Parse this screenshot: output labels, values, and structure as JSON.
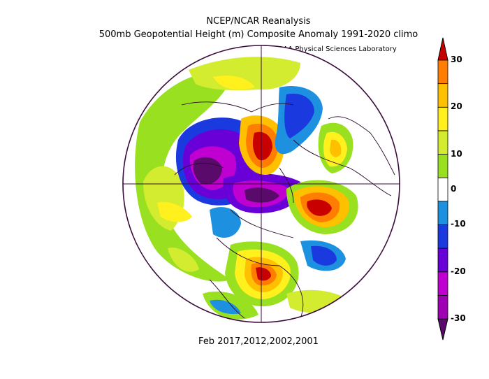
{
  "title": {
    "line1": "NCEP/NCAR Reanalysis",
    "line2": "500mb Geopotential Height (m) Composite Anomaly 1991-2020 climo"
  },
  "credit": "NOAA Physical Sciences Laboratory",
  "footer": "Feb 2017,2012,2002,2001",
  "map": {
    "projection": "north-polar-stereographic",
    "border_color": "#3a0a3a",
    "land_outline_color": "#2b0a2b"
  },
  "colorbar": {
    "labels": [
      "30",
      "20",
      "10",
      "0",
      "-10",
      "-20",
      "-30"
    ],
    "values": [
      30,
      20,
      10,
      0,
      -10,
      -20,
      -30
    ],
    "extends": "both",
    "bins": [
      {
        "range": "< -30",
        "color": "#5a0a6a"
      },
      {
        "range": "-30 to -25",
        "color": "#a000b4"
      },
      {
        "range": "-25 to -20",
        "color": "#c000d0"
      },
      {
        "range": "-20 to -15",
        "color": "#6a00d8"
      },
      {
        "range": "-15 to -10",
        "color": "#1a3ae0"
      },
      {
        "range": "-10 to -5",
        "color": "#1e90e0"
      },
      {
        "range": "-5 to 5",
        "color": "#ffffff"
      },
      {
        "range": "5 to 10",
        "color": "#98e020"
      },
      {
        "range": "10 to 15",
        "color": "#d4ec30"
      },
      {
        "range": "15 to 20",
        "color": "#fff01e"
      },
      {
        "range": "20 to 25",
        "color": "#ffc000"
      },
      {
        "range": "25 to 30",
        "color": "#ff7d00"
      },
      {
        "range": "> 30",
        "color": "#c80000"
      }
    ]
  }
}
